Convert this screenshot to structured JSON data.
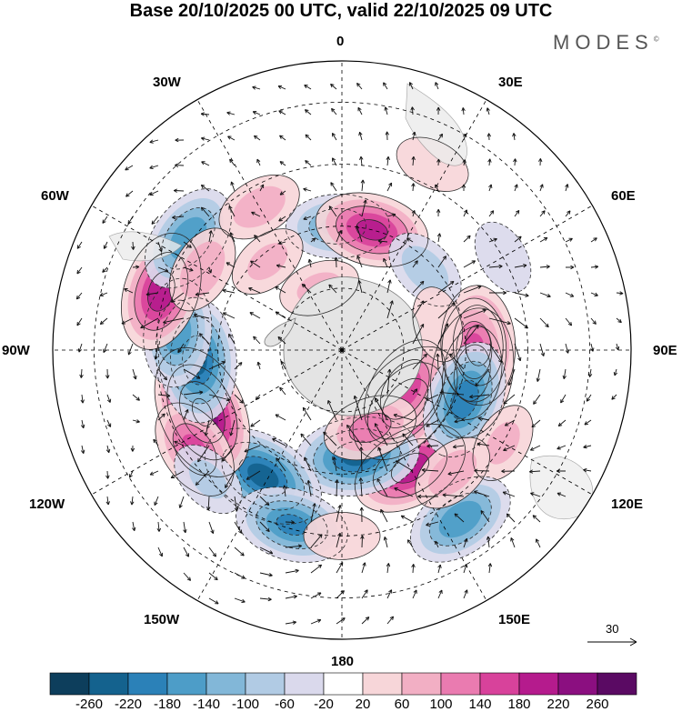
{
  "title": "Base 20/10/2025 00 UTC, valid 22/10/2025 09 UTC",
  "brand": "MODES",
  "brand_mark": "©",
  "longitude_labels": {
    "lon_0": "0",
    "lon_30e": "30E",
    "lon_60e": "60E",
    "lon_90e": "90E",
    "lon_120e": "120E",
    "lon_150e": "150E",
    "lon_180": "180",
    "lon_150w": "150W",
    "lon_120w": "120W",
    "lon_90w": "90W",
    "lon_60w": "60W",
    "lon_30w": "30W"
  },
  "vector_scale": {
    "label": "30"
  },
  "colorbar": {
    "ticks": [
      "-260",
      "-220",
      "-180",
      "-140",
      "-100",
      "-60",
      "-20",
      "20",
      "60",
      "100",
      "140",
      "180",
      "220",
      "260"
    ],
    "colors": [
      "#0d3e5c",
      "#14628e",
      "#2b81b8",
      "#4d9dc8",
      "#82b7d8",
      "#b1cbe4",
      "#dad9ec",
      "#ffffff",
      "#f7d6d9",
      "#f2afc4",
      "#ea7bb0",
      "#d8429b",
      "#b51b8d",
      "#8b0f80",
      "#5a0a63"
    ]
  },
  "anomalies": [
    {
      "lon": 100,
      "lat": 58,
      "value": 240
    },
    {
      "lon": 88,
      "lat": 57,
      "value": 200
    },
    {
      "lon": 90,
      "lat": 58,
      "value": 140
    },
    {
      "lon": 150,
      "lat": 57,
      "value": 200
    },
    {
      "lon": 130,
      "lat": 70,
      "value": 240
    },
    {
      "lon": 122,
      "lat": 72,
      "value": 160
    },
    {
      "lon": 172,
      "lat": 64,
      "value": -220
    },
    {
      "lon": 212,
      "lat": 54,
      "value": -230
    },
    {
      "lon": 196,
      "lat": 46,
      "value": -180
    },
    {
      "lon": 246,
      "lat": 53,
      "value": 260
    },
    {
      "lon": 236,
      "lat": 47,
      "value": 140
    },
    {
      "lon": 266,
      "lat": 55,
      "value": -220
    },
    {
      "lon": 276,
      "lat": 50,
      "value": -160
    },
    {
      "lon": 288,
      "lat": 44,
      "value": 200
    },
    {
      "lon": 306,
      "lat": 44,
      "value": -170
    },
    {
      "lon": 300,
      "lat": 51,
      "value": 90
    },
    {
      "lon": 330,
      "lat": 50,
      "value": 80
    },
    {
      "lon": 340,
      "lat": 74,
      "value": 60
    },
    {
      "lon": 358,
      "lat": 60,
      "value": -140
    },
    {
      "lon": 14,
      "lat": 60,
      "value": 180
    },
    {
      "lon": 46,
      "lat": 62,
      "value": -80
    },
    {
      "lon": 112,
      "lat": 58,
      "value": -200
    },
    {
      "lon": 120,
      "lat": 45,
      "value": 60
    },
    {
      "lon": 145,
      "lat": 40,
      "value": -170
    },
    {
      "lon": 138,
      "lat": 50,
      "value": 80
    },
    {
      "lon": 160,
      "lat": 70,
      "value": 110
    },
    {
      "lon": 26,
      "lat": 40,
      "value": 40
    },
    {
      "lon": 60,
      "lat": 45,
      "value": -40
    },
    {
      "lon": 75,
      "lat": 66,
      "value": 40
    },
    {
      "lon": 226,
      "lat": 45,
      "value": -60
    },
    {
      "lon": 180,
      "lat": 45,
      "value": 40
    },
    {
      "lon": 320,
      "lat": 62,
      "value": 60
    }
  ]
}
